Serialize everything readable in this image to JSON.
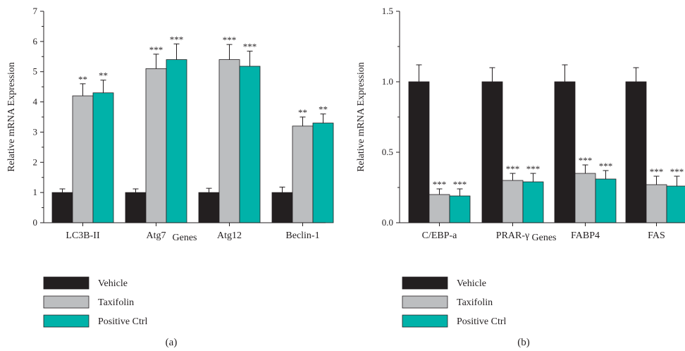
{
  "colors": {
    "vehicle": "#231f20",
    "taxifolin": "#bcbec0",
    "positive_ctrl": "#00b2a9",
    "axis": "#231f20"
  },
  "chart_data": [
    {
      "type": "bar",
      "panel_label": "(a)",
      "xlabel": "Genes",
      "ylabel": "Relative mRNA Expression",
      "ylim": [
        0,
        7
      ],
      "yticks": [
        "0",
        "1",
        "2",
        "3",
        "4",
        "5",
        "6",
        "7"
      ],
      "categories": [
        "LC3B-II",
        "Atg7",
        "Atg12",
        "Beclin-1"
      ],
      "legend_position": "bottom-left",
      "series": [
        {
          "name": "Vehicle",
          "color": "#231f20",
          "values": [
            1.0,
            1.0,
            1.0,
            1.0
          ],
          "errors": [
            0.12,
            0.12,
            0.14,
            0.18
          ],
          "sig": [
            "",
            "",
            "",
            ""
          ]
        },
        {
          "name": "Taxifolin",
          "color": "#bcbec0",
          "values": [
            4.2,
            5.1,
            5.4,
            3.2
          ],
          "errors": [
            0.4,
            0.48,
            0.5,
            0.3
          ],
          "sig": [
            "**",
            "***",
            "***",
            "**"
          ]
        },
        {
          "name": "Positive Ctrl",
          "color": "#00b2a9",
          "values": [
            4.3,
            5.4,
            5.18,
            3.3
          ],
          "errors": [
            0.42,
            0.52,
            0.5,
            0.3
          ],
          "sig": [
            "**",
            "***",
            "***",
            "**"
          ]
        }
      ]
    },
    {
      "type": "bar",
      "panel_label": "(b)",
      "xlabel": "Genes",
      "ylabel": "Relative mRNA Expression",
      "ylim": [
        0,
        1.5
      ],
      "yticks": [
        "0.0",
        "0.5",
        "1.0",
        "1.5"
      ],
      "categories": [
        "C/EBP-a",
        "PRAR-γ",
        "FABP4",
        "FAS"
      ],
      "legend_position": "bottom-left",
      "series": [
        {
          "name": "Vehicle",
          "color": "#231f20",
          "values": [
            1.0,
            1.0,
            1.0,
            1.0
          ],
          "errors": [
            0.12,
            0.1,
            0.12,
            0.1
          ],
          "sig": [
            "",
            "",
            "",
            ""
          ]
        },
        {
          "name": "Taxifolin",
          "color": "#bcbec0",
          "values": [
            0.2,
            0.3,
            0.35,
            0.27
          ],
          "errors": [
            0.04,
            0.05,
            0.06,
            0.06
          ],
          "sig": [
            "***",
            "***",
            "***",
            "***"
          ]
        },
        {
          "name": "Positive Ctrl",
          "color": "#00b2a9",
          "values": [
            0.19,
            0.29,
            0.31,
            0.26
          ],
          "errors": [
            0.05,
            0.06,
            0.06,
            0.07
          ],
          "sig": [
            "***",
            "***",
            "***",
            "***"
          ]
        }
      ]
    }
  ]
}
